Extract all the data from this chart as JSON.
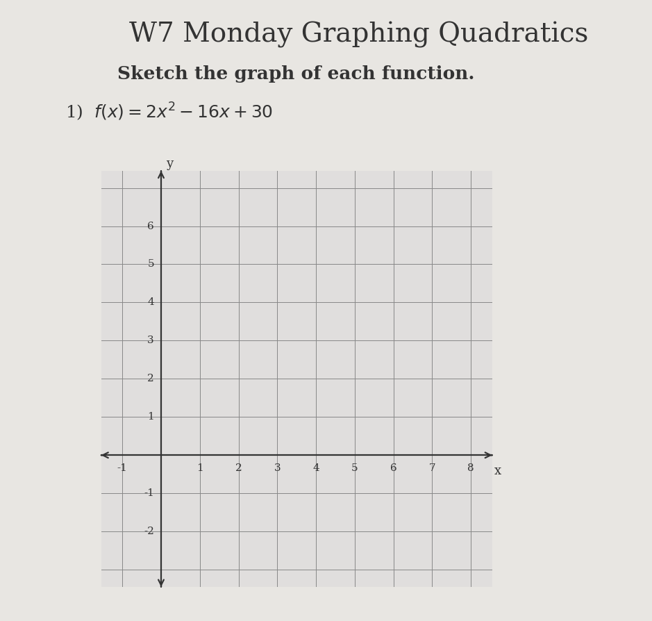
{
  "title": "W7 Monday Graphing Quadratics",
  "subtitle": "Sketch the graph of each function.",
  "problem_label": "1)  $f(x) = 2x^2 - 16x + 30$",
  "page_bg": "#e8e6e2",
  "grid_bg": "#e0dedd",
  "grid_color": "#888888",
  "axis_color": "#333333",
  "text_color": "#333333",
  "x_min": -1,
  "x_max": 8,
  "y_min": -3,
  "y_max": 7,
  "x_ticks": [
    -1,
    1,
    2,
    3,
    4,
    5,
    6,
    7,
    8
  ],
  "y_ticks": [
    -2,
    -1,
    1,
    2,
    3,
    4,
    5,
    6
  ],
  "x_label": "x",
  "y_label": "y",
  "title_fontsize": 28,
  "subtitle_fontsize": 19,
  "problem_fontsize": 18,
  "tick_fontsize": 11
}
